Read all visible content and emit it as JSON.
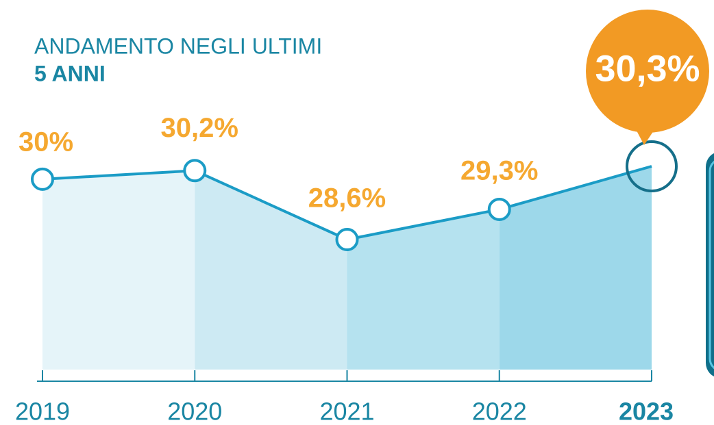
{
  "chart_data": {
    "type": "line",
    "title": "ANDAMENTO NEGLI ULTIMI",
    "subtitle": "5 ANNI",
    "categories": [
      "2019",
      "2020",
      "2021",
      "2022",
      "2023"
    ],
    "values": [
      30,
      30.2,
      28.6,
      29.3,
      30.3
    ],
    "value_labels": [
      "30%",
      "30,2%",
      "28,6%",
      "29,3%",
      "30,3%"
    ],
    "color": "#1b9cc6"
  }
}
